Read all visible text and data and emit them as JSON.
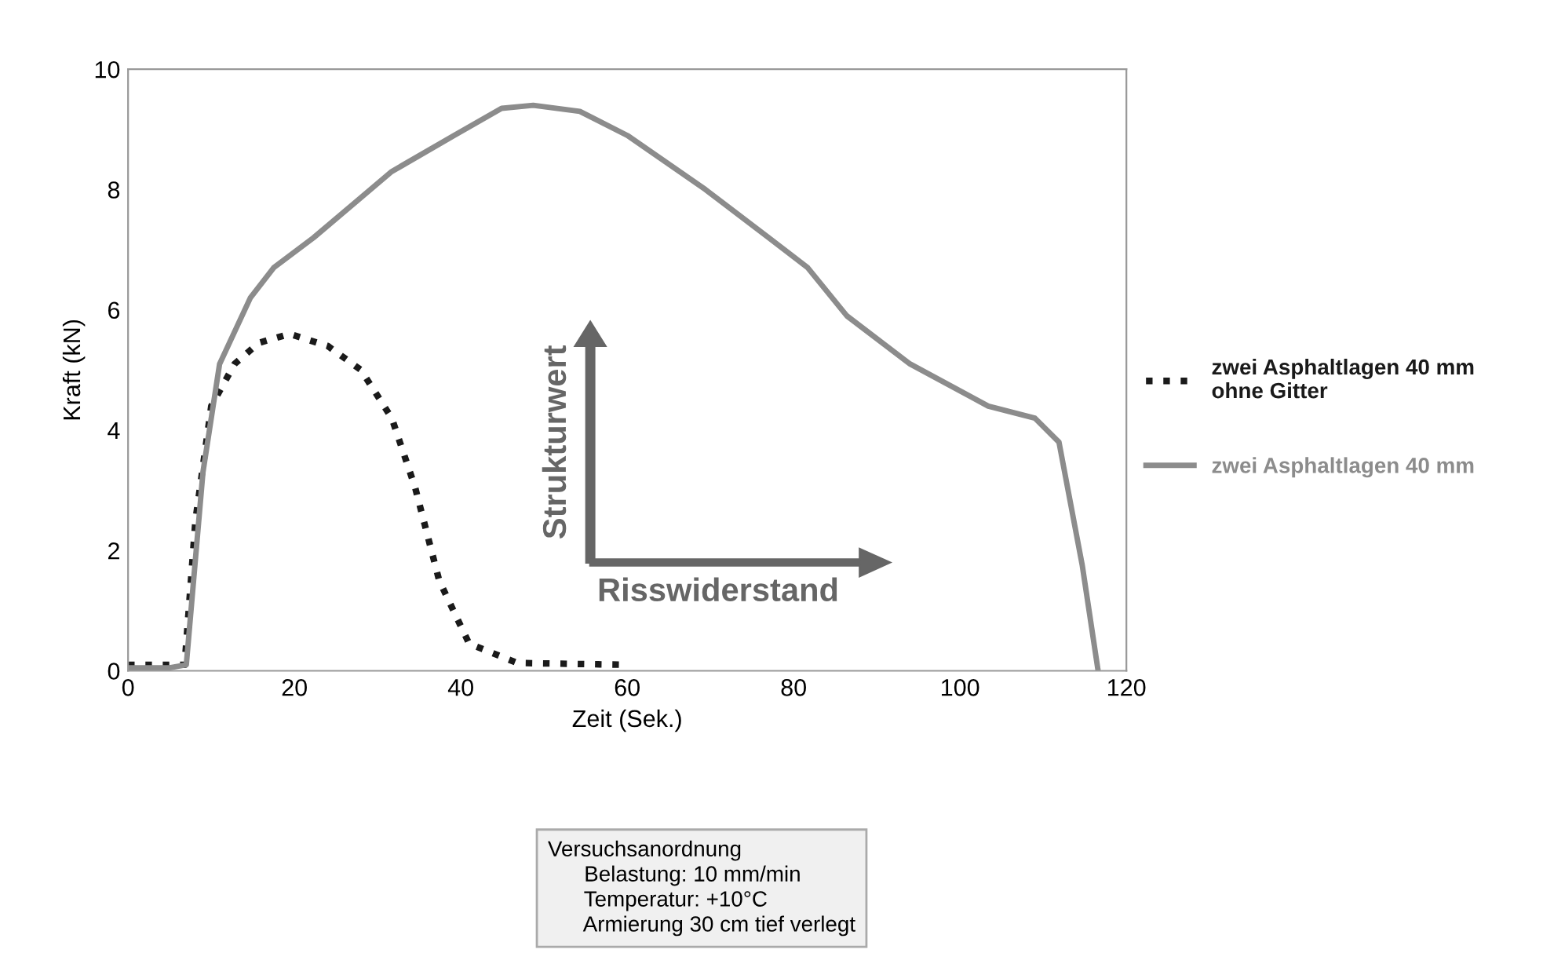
{
  "chart_data": {
    "type": "line",
    "xlabel": "Zeit (Sek.)",
    "ylabel": "Kraft (kN)",
    "xlim": [
      0,
      120
    ],
    "ylim": [
      0,
      10
    ],
    "xticks": [
      0,
      20,
      40,
      60,
      80,
      100,
      120
    ],
    "yticks": [
      0,
      2,
      4,
      6,
      8,
      10
    ],
    "grid": false,
    "legend": "right",
    "series": [
      {
        "name": "zwei Asphaltlagen 40 mm\nohne Gitter",
        "color": "#1a1a1a",
        "line_style": "dotted",
        "x": [
          0,
          5,
          6.8,
          8.1,
          10,
          12.8,
          15.7,
          19.4,
          24,
          28,
          31.7,
          34.5,
          37.4,
          41,
          46.8,
          60
        ],
        "values": [
          0.1,
          0.1,
          0.1,
          2.5,
          4.4,
          5.1,
          5.45,
          5.6,
          5.4,
          5.0,
          4.2,
          3.05,
          1.5,
          0.45,
          0.13,
          0.1
        ]
      },
      {
        "name": "zwei Asphaltlagen 40 mm",
        "color": "#8c8c8c",
        "line_style": "solid",
        "x": [
          0,
          5,
          7,
          9,
          11,
          14.7,
          17.5,
          22.3,
          31.7,
          39.2,
          44.9,
          48.7,
          54.3,
          60,
          69.4,
          77,
          81.7,
          86.4,
          94,
          103.4,
          109,
          111.9,
          114.7,
          116.6
        ],
        "values": [
          0.05,
          0.05,
          0.1,
          3.3,
          5.1,
          6.2,
          6.7,
          7.2,
          8.3,
          8.9,
          9.35,
          9.4,
          9.3,
          8.9,
          8.0,
          7.2,
          6.7,
          5.9,
          5.1,
          4.4,
          4.2,
          3.8,
          1.75,
          0
        ]
      }
    ],
    "annotations": [
      {
        "text": "Strukturwert"
      },
      {
        "text": "Risswiderstand"
      },
      {
        "text": "Versuchsanordnung\n      Belastung: 10 mm/min\n      Temperatur: +10°C\n      Armierung 30 cm tief verlegt"
      }
    ]
  }
}
